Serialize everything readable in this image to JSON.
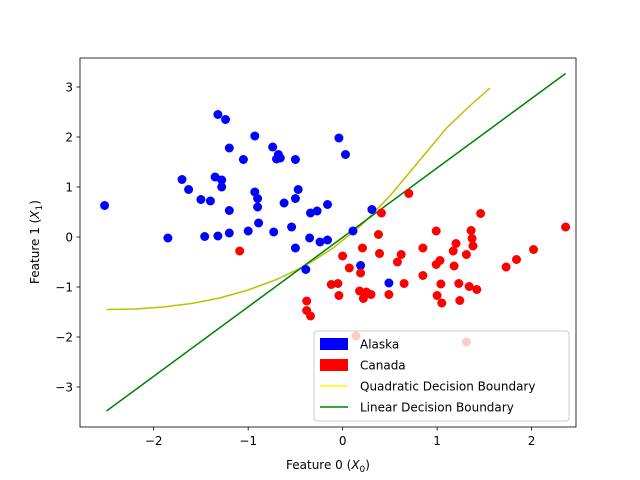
{
  "chart_data": {
    "type": "scatter",
    "title": "",
    "xlabel": "Feature 0 ($X_0$)",
    "xlabel_main": "Feature 0 (",
    "xlabel_var": "X",
    "xlabel_sub": "0",
    "xlabel_close": ")",
    "ylabel": "Feature 1 ($X_1$)",
    "ylabel_main": "Feature 1 (",
    "ylabel_var": "X",
    "ylabel_sub": "1",
    "ylabel_close": ")",
    "xlim": [
      -2.78,
      2.47
    ],
    "ylim": [
      -3.8,
      3.58
    ],
    "xticks": [
      -2,
      -1,
      0,
      1,
      2
    ],
    "yticks": [
      -3,
      -2,
      -1,
      0,
      1,
      2,
      3
    ],
    "xtick_labels": [
      "−2",
      "−1",
      "0",
      "1",
      "2"
    ],
    "ytick_labels": [
      "−3",
      "−2",
      "−1",
      "0",
      "1",
      "2",
      "3"
    ],
    "grid": false,
    "legend_position": "lower-right",
    "series": [
      {
        "name": "Alaska",
        "kind": "points",
        "color": "#0000ff",
        "points": [
          [
            -2.52,
            0.63
          ],
          [
            -1.85,
            -0.02
          ],
          [
            -1.7,
            1.15
          ],
          [
            -1.63,
            0.95
          ],
          [
            -1.5,
            0.75
          ],
          [
            -1.46,
            0.01
          ],
          [
            -1.4,
            0.72
          ],
          [
            -1.35,
            1.2
          ],
          [
            -1.32,
            2.45
          ],
          [
            -1.32,
            0.02
          ],
          [
            -1.28,
            1.14
          ],
          [
            -1.28,
            1.0
          ],
          [
            -1.24,
            2.35
          ],
          [
            -1.2,
            1.78
          ],
          [
            -1.2,
            0.53
          ],
          [
            -1.2,
            0.08
          ],
          [
            -1.05,
            1.55
          ],
          [
            -1.0,
            0.12
          ],
          [
            -0.93,
            2.02
          ],
          [
            -0.93,
            0.9
          ],
          [
            -0.9,
            0.77
          ],
          [
            -0.9,
            0.6
          ],
          [
            -0.89,
            0.28
          ],
          [
            -0.74,
            1.8
          ],
          [
            -0.73,
            0.1
          ],
          [
            -0.7,
            1.56
          ],
          [
            -0.68,
            1.65
          ],
          [
            -0.66,
            1.58
          ],
          [
            -0.62,
            0.68
          ],
          [
            -0.54,
            0.2
          ],
          [
            -0.5,
            1.55
          ],
          [
            -0.5,
            0.77
          ],
          [
            -0.5,
            -0.22
          ],
          [
            -0.47,
            0.95
          ],
          [
            -0.39,
            -0.65
          ],
          [
            -0.35,
            -0.02
          ],
          [
            -0.34,
            0.48
          ],
          [
            -0.27,
            0.52
          ],
          [
            -0.24,
            -0.1
          ],
          [
            -0.16,
            0.65
          ],
          [
            -0.16,
            -0.06
          ],
          [
            -0.04,
            1.98
          ],
          [
            0.03,
            1.65
          ],
          [
            0.11,
            0.12
          ],
          [
            0.19,
            -0.57
          ],
          [
            0.49,
            -0.92
          ],
          [
            0.31,
            0.55
          ]
        ]
      },
      {
        "name": "Canada",
        "kind": "points",
        "color": "#ff0000",
        "points": [
          [
            -1.09,
            -0.28
          ],
          [
            -0.38,
            -1.28
          ],
          [
            -0.38,
            -1.47
          ],
          [
            -0.34,
            -1.58
          ],
          [
            -0.12,
            -0.95
          ],
          [
            -0.05,
            -0.93
          ],
          [
            -0.04,
            -1.17
          ],
          [
            0.0,
            -0.38
          ],
          [
            0.07,
            -0.62
          ],
          [
            0.18,
            -1.08
          ],
          [
            0.19,
            -0.72
          ],
          [
            0.21,
            -0.22
          ],
          [
            0.22,
            -1.23
          ],
          [
            0.25,
            -1.1
          ],
          [
            0.3,
            -1.15
          ],
          [
            0.38,
            0.05
          ],
          [
            0.39,
            -0.33
          ],
          [
            0.41,
            0.48
          ],
          [
            0.49,
            -1.15
          ],
          [
            0.58,
            -0.5
          ],
          [
            0.62,
            -0.35
          ],
          [
            0.65,
            -0.93
          ],
          [
            0.7,
            0.87
          ],
          [
            0.85,
            -0.22
          ],
          [
            0.85,
            -0.77
          ],
          [
            0.99,
            0.12
          ],
          [
            0.99,
            -0.55
          ],
          [
            1.0,
            -1.17
          ],
          [
            1.03,
            -0.47
          ],
          [
            1.04,
            -0.94
          ],
          [
            1.05,
            -1.32
          ],
          [
            1.17,
            -0.28
          ],
          [
            1.18,
            -0.58
          ],
          [
            1.2,
            -0.13
          ],
          [
            1.23,
            -0.93
          ],
          [
            1.24,
            -1.27
          ],
          [
            1.31,
            -0.35
          ],
          [
            1.34,
            -0.99
          ],
          [
            1.36,
            0.13
          ],
          [
            1.37,
            -0.03
          ],
          [
            1.38,
            -0.18
          ],
          [
            1.42,
            -1.05
          ],
          [
            1.46,
            0.47
          ],
          [
            1.73,
            -0.6
          ],
          [
            1.84,
            -0.45
          ],
          [
            2.02,
            -0.25
          ],
          [
            2.36,
            0.2
          ],
          [
            0.14,
            -1.98
          ],
          [
            1.31,
            -2.1
          ]
        ]
      },
      {
        "name": "Quadratic Decision Boundary",
        "kind": "line",
        "color": "#bfbf00",
        "legend_color": "#ffff00",
        "points": [
          [
            -2.5,
            -1.45
          ],
          [
            -2.2,
            -1.44
          ],
          [
            -1.9,
            -1.4
          ],
          [
            -1.6,
            -1.33
          ],
          [
            -1.3,
            -1.22
          ],
          [
            -1.0,
            -1.06
          ],
          [
            -0.7,
            -0.85
          ],
          [
            -0.4,
            -0.58
          ],
          [
            -0.1,
            -0.22
          ],
          [
            0.2,
            0.24
          ],
          [
            0.5,
            0.82
          ],
          [
            0.8,
            1.5
          ],
          [
            1.1,
            2.18
          ],
          [
            1.35,
            2.63
          ],
          [
            1.56,
            2.98
          ]
        ]
      },
      {
        "name": "Linear Decision Boundary",
        "kind": "line",
        "color": "#008000",
        "points": [
          [
            -2.5,
            -3.48
          ],
          [
            2.36,
            3.27
          ]
        ]
      }
    ],
    "legend_entries": [
      {
        "label": "Alaska",
        "swatch": "patch",
        "color": "#0000ff"
      },
      {
        "label": "Canada",
        "swatch": "patch",
        "color": "#ff0000"
      },
      {
        "label": "Quadratic Decision Boundary",
        "swatch": "line",
        "color": "#ffff00"
      },
      {
        "label": "Linear Decision Boundary",
        "swatch": "line",
        "color": "#008000"
      }
    ]
  }
}
